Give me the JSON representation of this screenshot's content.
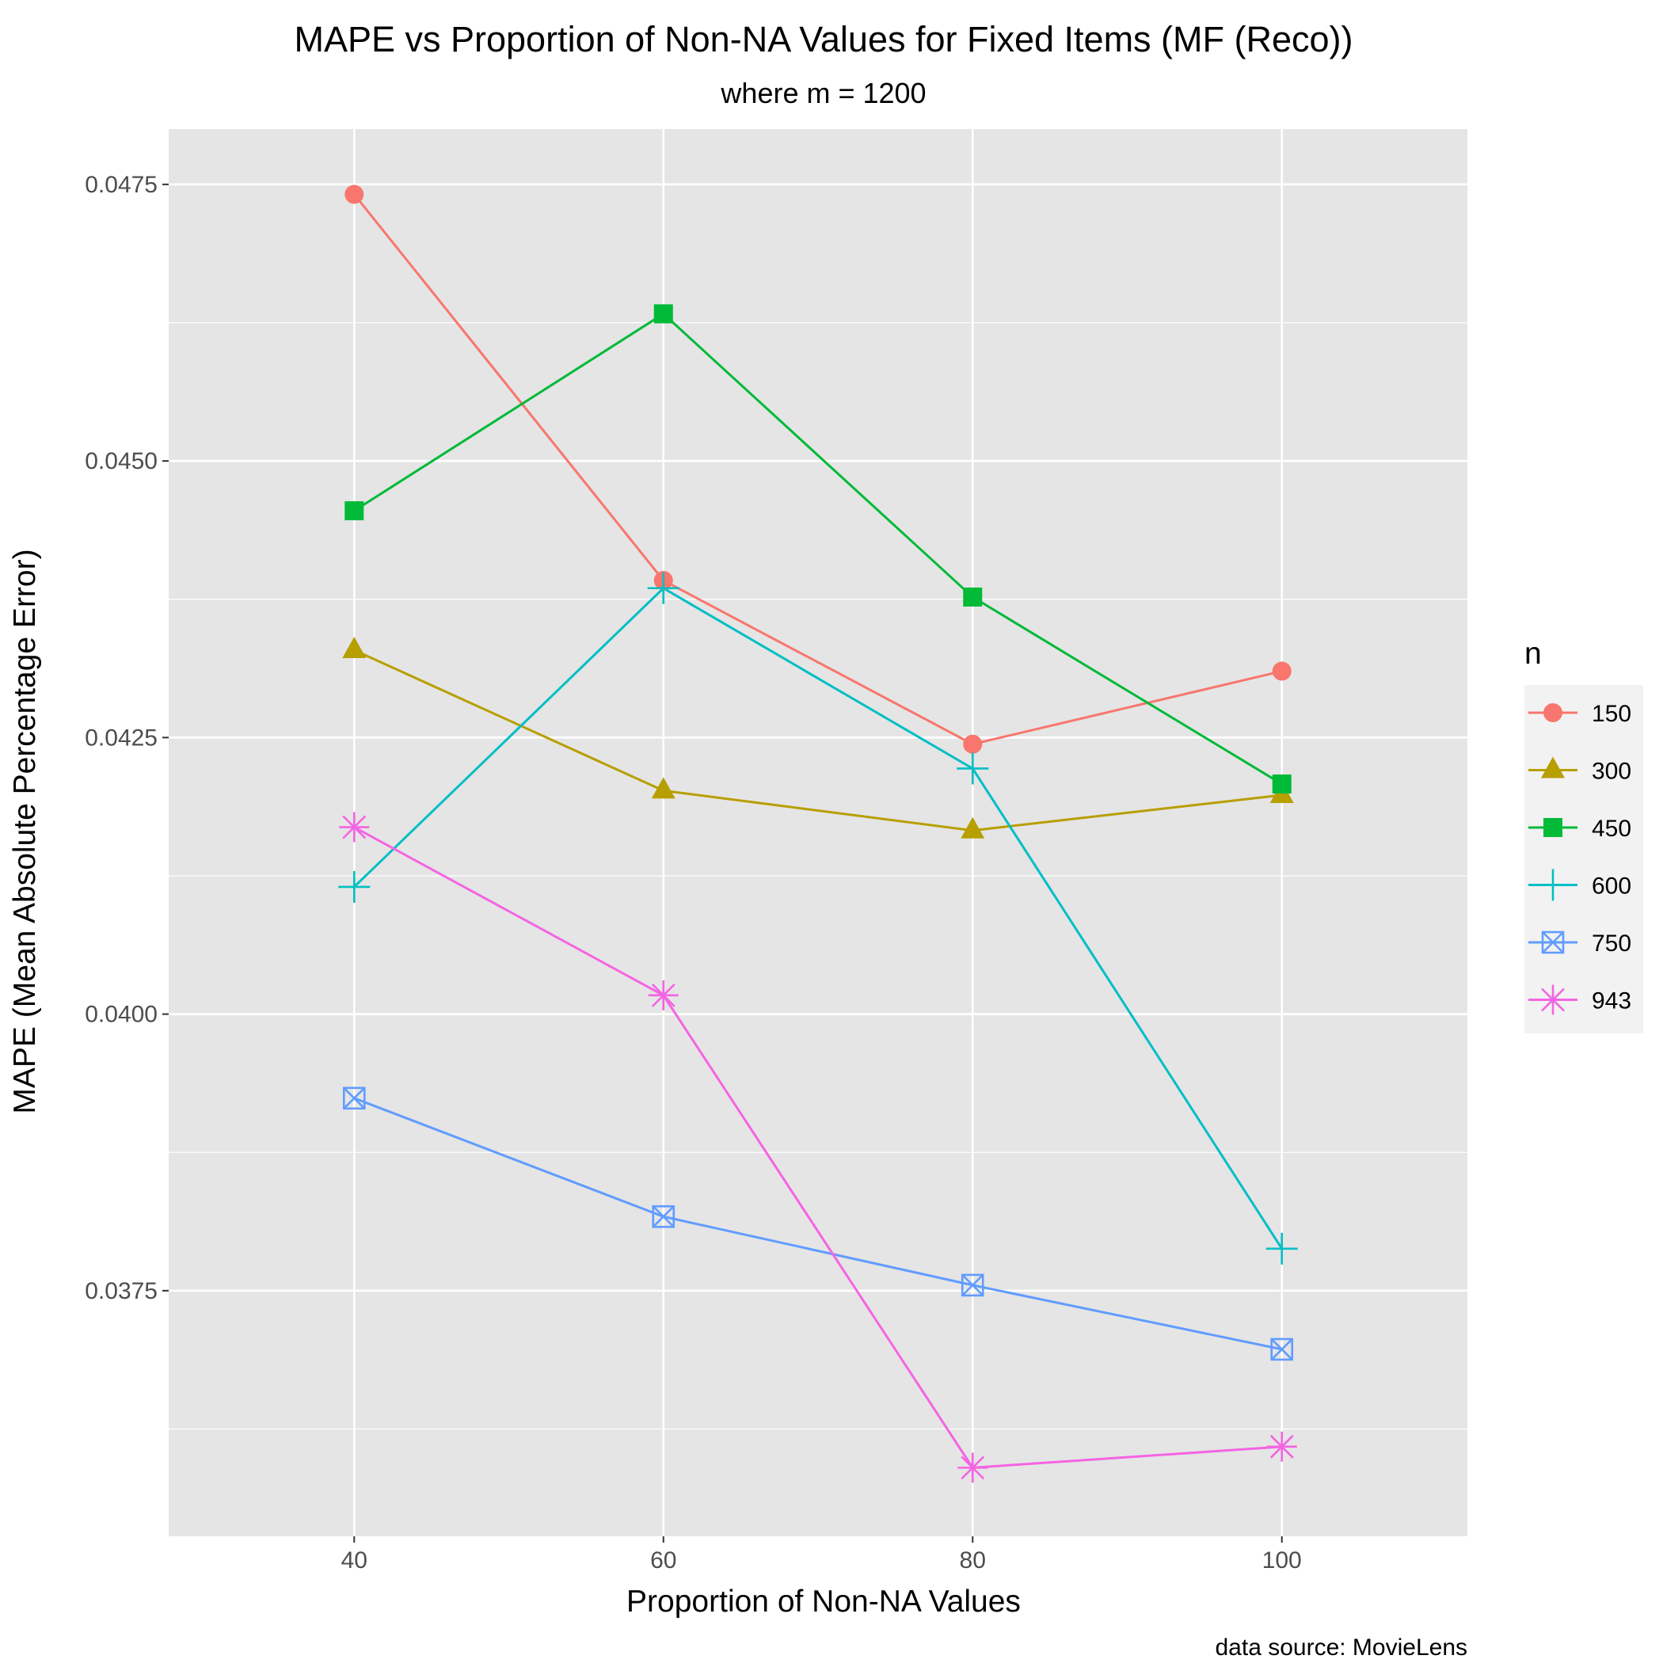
{
  "chart_data": {
    "type": "line",
    "title": "MAPE vs Proportion of Non-NA Values for Fixed Items (MF (Reco))",
    "subtitle": "where m = 1200",
    "xlabel": "Proportion of Non-NA Values",
    "ylabel": "MAPE (Mean Absolute Percentage Error)",
    "caption": "data source: MovieLens",
    "x": [
      40,
      60,
      80,
      100
    ],
    "xlim": [
      28,
      112
    ],
    "ylim": [
      0.03528,
      0.048
    ],
    "x_ticks": [
      "40",
      "60",
      "80",
      "100"
    ],
    "x_tick_values": [
      40,
      60,
      80,
      100
    ],
    "y_ticks": [
      "0.0375",
      "0.0400",
      "0.0425",
      "0.0450",
      "0.0475"
    ],
    "y_tick_values": [
      0.0375,
      0.04,
      0.0425,
      0.045,
      0.0475
    ],
    "grid": true,
    "legend": {
      "title": "n",
      "position": "right"
    },
    "series": [
      {
        "name": "150",
        "color": "#F8766D",
        "shape": "circle",
        "values": [
          0.04741,
          0.04392,
          0.04244,
          0.0431
        ]
      },
      {
        "name": "300",
        "color": "#B79F00",
        "shape": "triangle",
        "values": [
          0.04329,
          0.04202,
          0.04166,
          0.04198
        ]
      },
      {
        "name": "450",
        "color": "#00BA38",
        "shape": "square",
        "values": [
          0.04455,
          0.04633,
          0.04377,
          0.04208
        ]
      },
      {
        "name": "600",
        "color": "#00BFC4",
        "shape": "plus",
        "values": [
          0.04115,
          0.04385,
          0.04222,
          0.03788
        ]
      },
      {
        "name": "750",
        "color": "#619CFF",
        "shape": "boxcross",
        "values": [
          0.03924,
          0.03817,
          0.03755,
          0.03697
        ]
      },
      {
        "name": "943",
        "color": "#F564E3",
        "shape": "asterisk",
        "values": [
          0.04169,
          0.04017,
          0.0359,
          0.03609
        ]
      }
    ]
  }
}
